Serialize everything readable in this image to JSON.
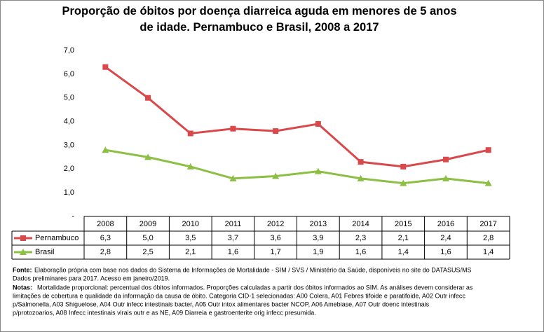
{
  "chart_data": {
    "type": "line",
    "title": "Proporção de óbitos por doença diarreica aguda em menores de 5 anos de idade. Pernambuco e Brasil, 2008 a 2017",
    "categories": [
      "2008",
      "2009",
      "2010",
      "2011",
      "2012",
      "2013",
      "2014",
      "2015",
      "2016",
      "2017"
    ],
    "series": [
      {
        "name": "Pernambuco",
        "color": "#d9484a",
        "marker": "square",
        "values": [
          6.3,
          5.0,
          3.5,
          3.7,
          3.6,
          3.9,
          2.3,
          2.1,
          2.4,
          2.8
        ],
        "value_labels": [
          "6,3",
          "5,0",
          "3,5",
          "3,7",
          "3,6",
          "3,9",
          "2,3",
          "2,1",
          "2,4",
          "2,8"
        ]
      },
      {
        "name": "Brasil",
        "color": "#8dbf45",
        "marker": "triangle",
        "values": [
          2.8,
          2.5,
          2.1,
          1.6,
          1.7,
          1.9,
          1.6,
          1.4,
          1.6,
          1.4
        ],
        "value_labels": [
          "2,8",
          "2,5",
          "2,1",
          "1,6",
          "1,7",
          "1,9",
          "1,6",
          "1,4",
          "1,6",
          "1,4"
        ]
      }
    ],
    "ylim": [
      0,
      7
    ],
    "yticks": [
      {
        "value": 0,
        "label": "-"
      },
      {
        "value": 1,
        "label": "1,0"
      },
      {
        "value": 2,
        "label": "2,0"
      },
      {
        "value": 3,
        "label": "3,0"
      },
      {
        "value": 4,
        "label": "4,0"
      },
      {
        "value": 5,
        "label": "5,0"
      },
      {
        "value": 6,
        "label": "6,0"
      },
      {
        "value": 7,
        "label": "7,0"
      }
    ],
    "grid": false,
    "source_label": "Fonte:",
    "source_lines": [
      "Elaboração própria com base nos dados do Sistema de Informações de Mortalidade - SIM / SVS / Ministério da Saúde, disponíveis no site do DATASUS/MS",
      "Dados preliminares para 2017. Acesso em janeiro/2019."
    ],
    "notes_label": "Notas:",
    "notes_lines": [
      "Mortalidade proporcional: percentual dos óbitos informados. Proporções calculadas a partir dos óbitos informados ao SIM. As análises devem considerar as",
      "limitações de cobertura e qualidade da informação da causa de óbito. Categoria CID-1 selecionadas: A00 Colera, A01 Febres tifoide e paratifoide, A02 Outr infecc",
      "p/Salmonella, A03 Shiguelose, A04 Outr infecc intestinais bacter, A05 Outr intox alimentares bacter NCOP, A06 Amebiase, A07 Outr doenc intestinais",
      "p/protozoarios, A08 Infecc intestinais virais outr e as NE, A09 Diarreia e gastroenterite orig infecc presumida."
    ]
  }
}
